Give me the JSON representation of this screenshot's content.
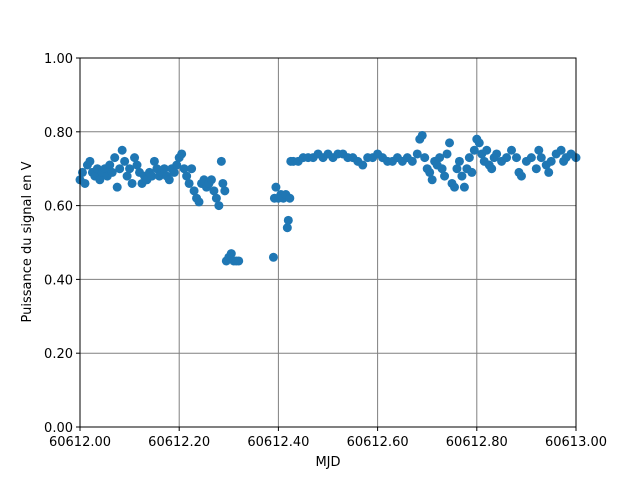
{
  "chart_data": {
    "type": "scatter",
    "xlabel": "MJD",
    "ylabel": "Puissance du signal en V",
    "color": "#1f77b4",
    "grid": true,
    "xlim": [
      60612.0,
      60613.0
    ],
    "xticks": [
      {
        "value": 60612.0,
        "label": "60612.00"
      },
      {
        "value": 60612.2,
        "label": "60612.20"
      },
      {
        "value": 60612.4,
        "label": "60612.40"
      },
      {
        "value": 60612.6,
        "label": "60612.60"
      },
      {
        "value": 60612.8,
        "label": "60612.80"
      },
      {
        "value": 60613.0,
        "label": "60613.00"
      }
    ],
    "ylim": [
      0,
      1
    ],
    "yticks": [
      {
        "value": 0,
        "label": "0.00"
      },
      {
        "value": 0.2,
        "label": "0.20"
      },
      {
        "value": 0.4,
        "label": "0.40"
      },
      {
        "value": 0.6,
        "label": "0.60"
      },
      {
        "value": 0.8,
        "label": "0.80"
      },
      {
        "value": 1.0,
        "label": "1.00"
      }
    ],
    "x": [
      60612.0,
      60612.005,
      60612.01,
      60612.015,
      60612.02,
      60612.025,
      60612.03,
      60612.035,
      60612.04,
      60612.045,
      60612.05,
      60612.055,
      60612.06,
      60612.065,
      60612.07,
      60612.075,
      60612.08,
      60612.085,
      60612.09,
      60612.095,
      60612.1,
      60612.105,
      60612.11,
      60612.115,
      60612.12,
      60612.125,
      60612.13,
      60612.135,
      60612.14,
      60612.145,
      60612.15,
      60612.155,
      60612.16,
      60612.165,
      60612.17,
      60612.175,
      60612.18,
      60612.185,
      60612.19,
      60612.195,
      60612.2,
      60612.205,
      60612.21,
      60612.215,
      60612.22,
      60612.225,
      60612.23,
      60612.235,
      60612.24,
      60612.245,
      60612.25,
      60612.255,
      60612.26,
      60612.265,
      60612.27,
      60612.275,
      60612.28,
      60612.285,
      60612.288,
      60612.292,
      60612.295,
      60612.3,
      60612.305,
      60612.31,
      60612.315,
      60612.32,
      60612.39,
      60612.392,
      60612.395,
      60612.4,
      60612.405,
      60612.41,
      60612.415,
      60612.418,
      60612.42,
      60612.423,
      60612.425,
      60612.43,
      60612.44,
      60612.45,
      60612.46,
      60612.47,
      60612.48,
      60612.49,
      60612.5,
      60612.51,
      60612.52,
      60612.53,
      60612.54,
      60612.55,
      60612.56,
      60612.57,
      60612.58,
      60612.59,
      60612.6,
      60612.61,
      60612.62,
      60612.63,
      60612.64,
      60612.65,
      60612.66,
      60612.67,
      60612.68,
      60612.685,
      60612.69,
      60612.695,
      60612.7,
      60612.705,
      60612.71,
      60612.715,
      60612.72,
      60612.725,
      60612.73,
      60612.735,
      60612.74,
      60612.745,
      60612.75,
      60612.755,
      60612.76,
      60612.765,
      60612.77,
      60612.775,
      60612.78,
      60612.785,
      60612.79,
      60612.795,
      60612.8,
      60612.805,
      60612.81,
      60612.815,
      60612.82,
      60612.825,
      60612.83,
      60612.835,
      60612.84,
      60612.85,
      60612.86,
      60612.87,
      60612.88,
      60612.885,
      60612.89,
      60612.9,
      60612.91,
      60612.92,
      60612.925,
      60612.93,
      60612.94,
      60612.945,
      60612.95,
      60612.96,
      60612.97,
      60612.975,
      60612.98,
      60612.99,
      60613.0
    ],
    "values": [
      0.67,
      0.69,
      0.66,
      0.71,
      0.72,
      0.69,
      0.68,
      0.7,
      0.67,
      0.69,
      0.7,
      0.68,
      0.71,
      0.69,
      0.73,
      0.65,
      0.7,
      0.75,
      0.72,
      0.68,
      0.7,
      0.66,
      0.73,
      0.71,
      0.69,
      0.66,
      0.68,
      0.67,
      0.69,
      0.68,
      0.72,
      0.7,
      0.68,
      0.69,
      0.7,
      0.68,
      0.67,
      0.7,
      0.69,
      0.71,
      0.73,
      0.74,
      0.7,
      0.68,
      0.66,
      0.7,
      0.64,
      0.62,
      0.61,
      0.66,
      0.67,
      0.65,
      0.66,
      0.67,
      0.64,
      0.62,
      0.6,
      0.72,
      0.66,
      0.64,
      0.45,
      0.46,
      0.47,
      0.45,
      0.45,
      0.45,
      0.46,
      0.62,
      0.65,
      0.62,
      0.63,
      0.62,
      0.63,
      0.54,
      0.56,
      0.62,
      0.72,
      0.72,
      0.72,
      0.73,
      0.73,
      0.73,
      0.74,
      0.73,
      0.74,
      0.73,
      0.74,
      0.74,
      0.73,
      0.73,
      0.72,
      0.71,
      0.73,
      0.73,
      0.74,
      0.73,
      0.72,
      0.72,
      0.73,
      0.72,
      0.73,
      0.72,
      0.74,
      0.78,
      0.79,
      0.73,
      0.7,
      0.69,
      0.67,
      0.72,
      0.71,
      0.73,
      0.7,
      0.68,
      0.74,
      0.77,
      0.66,
      0.65,
      0.7,
      0.72,
      0.68,
      0.65,
      0.7,
      0.73,
      0.69,
      0.75,
      0.78,
      0.77,
      0.74,
      0.72,
      0.75,
      0.71,
      0.7,
      0.73,
      0.74,
      0.72,
      0.73,
      0.75,
      0.73,
      0.69,
      0.68,
      0.72,
      0.73,
      0.7,
      0.75,
      0.73,
      0.71,
      0.69,
      0.72,
      0.74,
      0.75,
      0.72,
      0.73,
      0.74,
      0.73
    ]
  }
}
